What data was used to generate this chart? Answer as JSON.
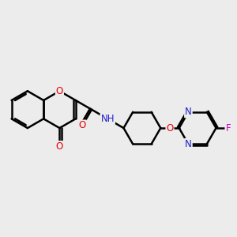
{
  "bg_color": "#ececec",
  "bond_color": "#000000",
  "bond_width": 1.8,
  "atom_colors": {
    "O": "#e80000",
    "N": "#2020cc",
    "F": "#cc00cc",
    "C": "#000000",
    "H": "#808080"
  },
  "font_size": 8.5,
  "fig_width": 3.0,
  "fig_height": 3.0,
  "dpi": 100
}
